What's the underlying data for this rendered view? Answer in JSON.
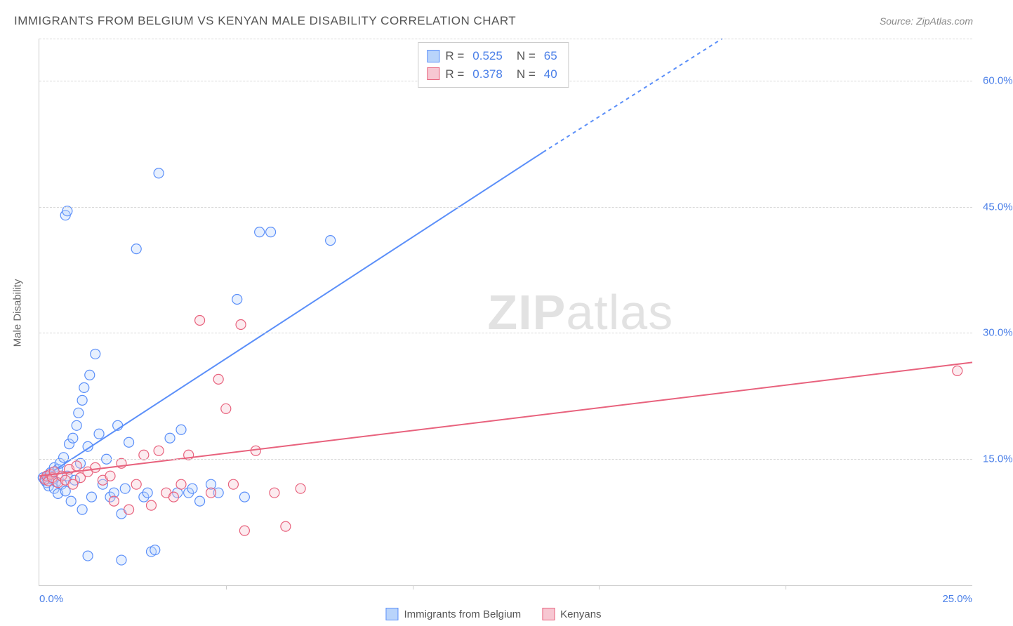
{
  "title": "IMMIGRANTS FROM BELGIUM VS KENYAN MALE DISABILITY CORRELATION CHART",
  "source": "Source: ZipAtlas.com",
  "watermark_bold": "ZIP",
  "watermark_light": "atlas",
  "ylabel": "Male Disability",
  "chart": {
    "type": "scatter",
    "xlim": [
      0,
      25
    ],
    "ylim": [
      0,
      65
    ],
    "x_ticks_minor": [
      5,
      10,
      15,
      20
    ],
    "x_tick_labels": {
      "0": "0.0%",
      "25": "25.0%"
    },
    "y_gridlines": [
      15,
      30,
      45,
      60
    ],
    "y_tick_labels": {
      "15": "15.0%",
      "30": "30.0%",
      "45": "45.0%",
      "60": "60.0%"
    },
    "background_color": "#ffffff",
    "grid_color": "#d8d8d8",
    "axis_color": "#cccccc",
    "marker_radius": 7,
    "marker_stroke_width": 1.2,
    "fill_opacity": 0.35,
    "label_fontsize": 15,
    "title_fontsize": 17,
    "series": [
      {
        "name": "Immigrants from Belgium",
        "color": "#5b8ff9",
        "fill": "#b9d4fb",
        "stroke": "#5b8ff9",
        "R": "0.525",
        "N": "65",
        "trendline": {
          "x1": 0,
          "y1": 12.5,
          "x_solid_end": 13.5,
          "y_solid_end": 51.5,
          "x2": 18.3,
          "y2": 65,
          "width": 2,
          "dash": "5,5"
        },
        "points": [
          [
            0.1,
            12.8
          ],
          [
            0.15,
            12.5
          ],
          [
            0.2,
            13.0
          ],
          [
            0.2,
            12.2
          ],
          [
            0.25,
            13.1
          ],
          [
            0.25,
            11.8
          ],
          [
            0.3,
            12.9
          ],
          [
            0.3,
            13.4
          ],
          [
            0.35,
            12.6
          ],
          [
            0.4,
            14.0
          ],
          [
            0.4,
            11.5
          ],
          [
            0.45,
            12.3
          ],
          [
            0.5,
            13.8
          ],
          [
            0.5,
            10.9
          ],
          [
            0.55,
            14.5
          ],
          [
            0.6,
            12.0
          ],
          [
            0.65,
            15.2
          ],
          [
            0.7,
            11.2
          ],
          [
            0.75,
            13.0
          ],
          [
            0.8,
            16.8
          ],
          [
            0.85,
            10.0
          ],
          [
            0.9,
            17.5
          ],
          [
            0.95,
            12.5
          ],
          [
            1.0,
            19.0
          ],
          [
            1.05,
            20.5
          ],
          [
            1.1,
            14.5
          ],
          [
            1.15,
            22.0
          ],
          [
            1.15,
            9.0
          ],
          [
            1.2,
            23.5
          ],
          [
            1.3,
            16.5
          ],
          [
            1.35,
            25.0
          ],
          [
            1.4,
            10.5
          ],
          [
            1.5,
            27.5
          ],
          [
            1.6,
            18.0
          ],
          [
            1.7,
            12.0
          ],
          [
            1.8,
            15.0
          ],
          [
            1.9,
            10.5
          ],
          [
            2.0,
            11.0
          ],
          [
            2.1,
            19.0
          ],
          [
            2.2,
            8.5
          ],
          [
            2.3,
            11.5
          ],
          [
            2.4,
            17.0
          ],
          [
            2.6,
            40.0
          ],
          [
            2.8,
            10.5
          ],
          [
            2.9,
            11.0
          ],
          [
            3.0,
            4.0
          ],
          [
            3.1,
            4.2
          ],
          [
            3.2,
            49.0
          ],
          [
            3.5,
            17.5
          ],
          [
            3.7,
            11.0
          ],
          [
            3.8,
            18.5
          ],
          [
            4.0,
            11.0
          ],
          [
            4.1,
            11.5
          ],
          [
            4.3,
            10.0
          ],
          [
            4.6,
            12.0
          ],
          [
            4.8,
            11.0
          ],
          [
            5.3,
            34.0
          ],
          [
            5.5,
            10.5
          ],
          [
            5.9,
            42.0
          ],
          [
            6.2,
            42.0
          ],
          [
            7.8,
            41.0
          ],
          [
            0.7,
            44.0
          ],
          [
            0.75,
            44.5
          ],
          [
            2.2,
            3.0
          ],
          [
            1.3,
            3.5
          ]
        ]
      },
      {
        "name": "Kenyans",
        "color": "#e8627d",
        "fill": "#f7c7d2",
        "stroke": "#e8627d",
        "R": "0.378",
        "N": "40",
        "trendline": {
          "x1": 0,
          "y1": 13.0,
          "x_solid_end": 25,
          "y_solid_end": 26.5,
          "x2": 25,
          "y2": 26.5,
          "width": 2,
          "dash": null
        },
        "points": [
          [
            0.15,
            12.6
          ],
          [
            0.2,
            13.0
          ],
          [
            0.25,
            12.4
          ],
          [
            0.3,
            13.2
          ],
          [
            0.35,
            12.8
          ],
          [
            0.4,
            13.5
          ],
          [
            0.5,
            12.2
          ],
          [
            0.6,
            13.0
          ],
          [
            0.7,
            12.5
          ],
          [
            0.8,
            13.8
          ],
          [
            0.9,
            12.0
          ],
          [
            1.0,
            14.2
          ],
          [
            1.1,
            12.8
          ],
          [
            1.3,
            13.5
          ],
          [
            1.5,
            14.0
          ],
          [
            1.7,
            12.5
          ],
          [
            1.9,
            13.0
          ],
          [
            2.0,
            10.0
          ],
          [
            2.2,
            14.5
          ],
          [
            2.4,
            9.0
          ],
          [
            2.6,
            12.0
          ],
          [
            2.8,
            15.5
          ],
          [
            3.0,
            9.5
          ],
          [
            3.2,
            16.0
          ],
          [
            3.4,
            11.0
          ],
          [
            3.6,
            10.5
          ],
          [
            3.8,
            12.0
          ],
          [
            4.0,
            15.5
          ],
          [
            4.3,
            31.5
          ],
          [
            4.6,
            11.0
          ],
          [
            4.8,
            24.5
          ],
          [
            5.0,
            21.0
          ],
          [
            5.2,
            12.0
          ],
          [
            5.4,
            31.0
          ],
          [
            5.5,
            6.5
          ],
          [
            5.8,
            16.0
          ],
          [
            6.3,
            11.0
          ],
          [
            6.6,
            7.0
          ],
          [
            7.0,
            11.5
          ],
          [
            24.6,
            25.5
          ]
        ]
      }
    ]
  },
  "colors": {
    "title_text": "#555555",
    "source_text": "#888888",
    "tick_blue": "#4a7fe8",
    "tick_pink": "#e8627d",
    "stat_value": "#4a7fe8"
  }
}
